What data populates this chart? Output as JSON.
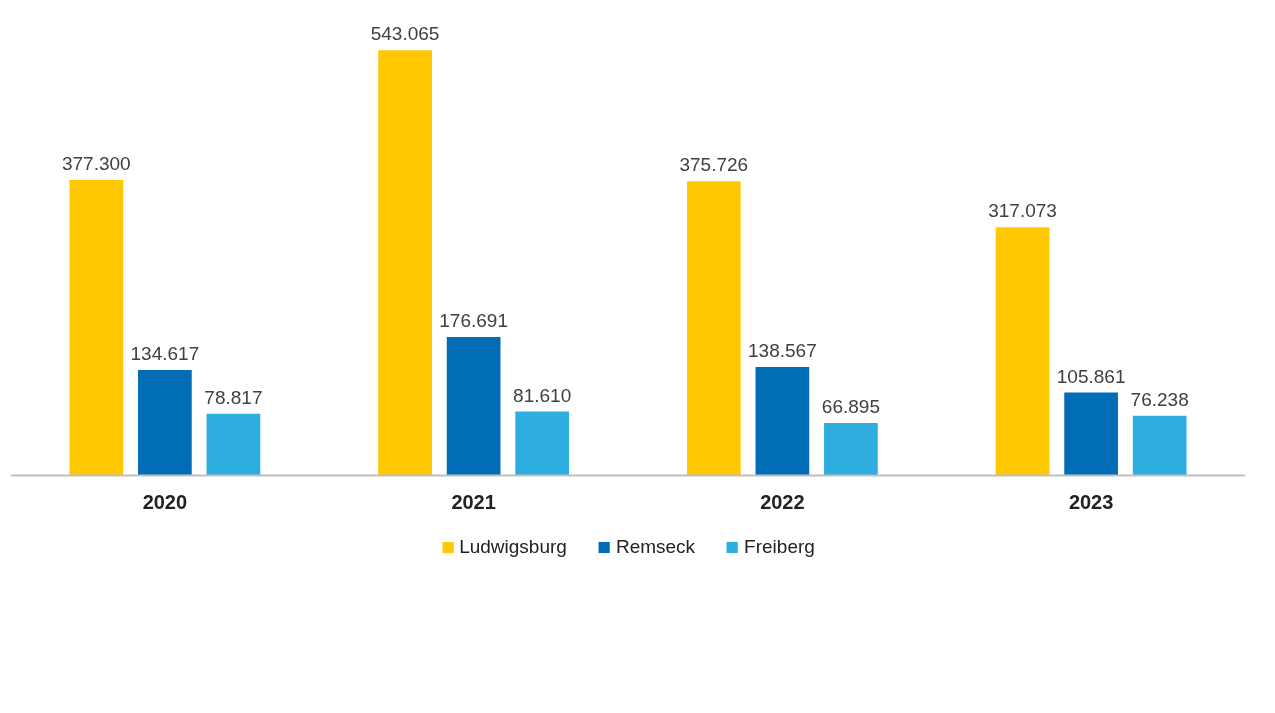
{
  "chart_data": {
    "type": "bar",
    "categories": [
      "2020",
      "2021",
      "2022",
      "2023"
    ],
    "series": [
      {
        "name": "Ludwigsburg",
        "color": "#ffc800",
        "values": [
          377300,
          543065,
          375726,
          317073
        ],
        "value_labels": [
          "377.300",
          "543.065",
          "375.726",
          "317.073"
        ]
      },
      {
        "name": "Remseck",
        "color": "#006db6",
        "values": [
          134617,
          176691,
          138567,
          105861
        ],
        "value_labels": [
          "134.617",
          "176.691",
          "138.567",
          "105.861"
        ]
      },
      {
        "name": "Freiberg",
        "color": "#2eaee0",
        "values": [
          78817,
          81610,
          66895,
          76238
        ],
        "value_labels": [
          "78.817",
          "81.610",
          "66.895",
          "76.238"
        ]
      }
    ],
    "grid": false,
    "legend": "bottom"
  }
}
